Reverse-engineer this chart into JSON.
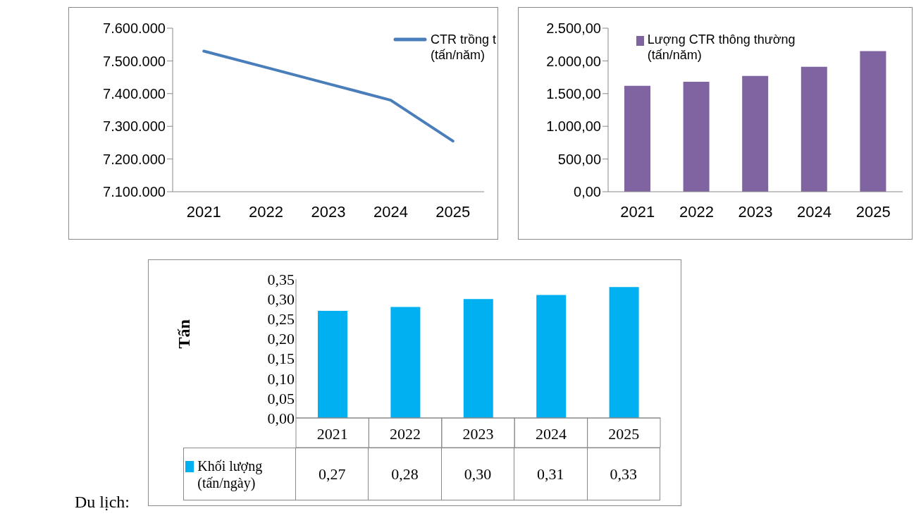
{
  "chart_data": [
    {
      "type": "line",
      "categories": [
        "2021",
        "2022",
        "2023",
        "2024",
        "2025"
      ],
      "series": [
        {
          "name": "CTR trồng t (tấn/năm)",
          "color": "#4a7ebb",
          "values": [
            7530000,
            7480000,
            7430000,
            7380000,
            7255000
          ]
        }
      ],
      "ylim": [
        7100000,
        7600000
      ],
      "yticks": [
        {
          "value": 7100000,
          "label": "7.100.000"
        },
        {
          "value": 7200000,
          "label": "7.200.000"
        },
        {
          "value": 7300000,
          "label": "7.300.000"
        },
        {
          "value": 7400000,
          "label": "7.400.000"
        },
        {
          "value": 7500000,
          "label": "7.500.000"
        },
        {
          "value": 7600000,
          "label": "7.600.000"
        }
      ],
      "legend": "top right",
      "marker": "none"
    },
    {
      "type": "bar",
      "categories": [
        "2021",
        "2022",
        "2023",
        "2024",
        "2025"
      ],
      "series": [
        {
          "name": "Lượng CTR thông thường (tấn/năm)",
          "color": "#8064a2",
          "values": [
            1620,
            1680,
            1770,
            1910,
            2150
          ]
        }
      ],
      "ylim": [
        0,
        2500
      ],
      "yticks": [
        {
          "value": 0,
          "label": "0,00"
        },
        {
          "value": 500,
          "label": "500,00"
        },
        {
          "value": 1000,
          "label": "1.000,00"
        },
        {
          "value": 1500,
          "label": "1.500,00"
        },
        {
          "value": 2000,
          "label": "2.000,00"
        },
        {
          "value": 2500,
          "label": "2.500,00"
        }
      ],
      "legend": "top left"
    },
    {
      "type": "bar",
      "categories": [
        "2021",
        "2022",
        "2023",
        "2024",
        "2025"
      ],
      "ylabel": "Tấn",
      "series": [
        {
          "name": "Khối lượng (tấn/ngày)",
          "color": "#00b0f0",
          "values": [
            0.27,
            0.28,
            0.3,
            0.31,
            0.33
          ],
          "value_labels": [
            "0,27",
            "0,28",
            "0,30",
            "0,31",
            "0,33"
          ]
        }
      ],
      "ylim": [
        0,
        0.35
      ],
      "yticks": [
        {
          "value": 0,
          "label": "0,00"
        },
        {
          "value": 0.05,
          "label": "0,05"
        },
        {
          "value": 0.1,
          "label": "0,10"
        },
        {
          "value": 0.15,
          "label": "0,15"
        },
        {
          "value": 0.2,
          "label": "0,20"
        },
        {
          "value": 0.25,
          "label": "0,25"
        },
        {
          "value": 0.3,
          "label": "0,30"
        },
        {
          "value": 0.35,
          "label": "0,35"
        }
      ],
      "legend": "bottom left",
      "annotations": [
        "Du lịch:"
      ]
    }
  ]
}
